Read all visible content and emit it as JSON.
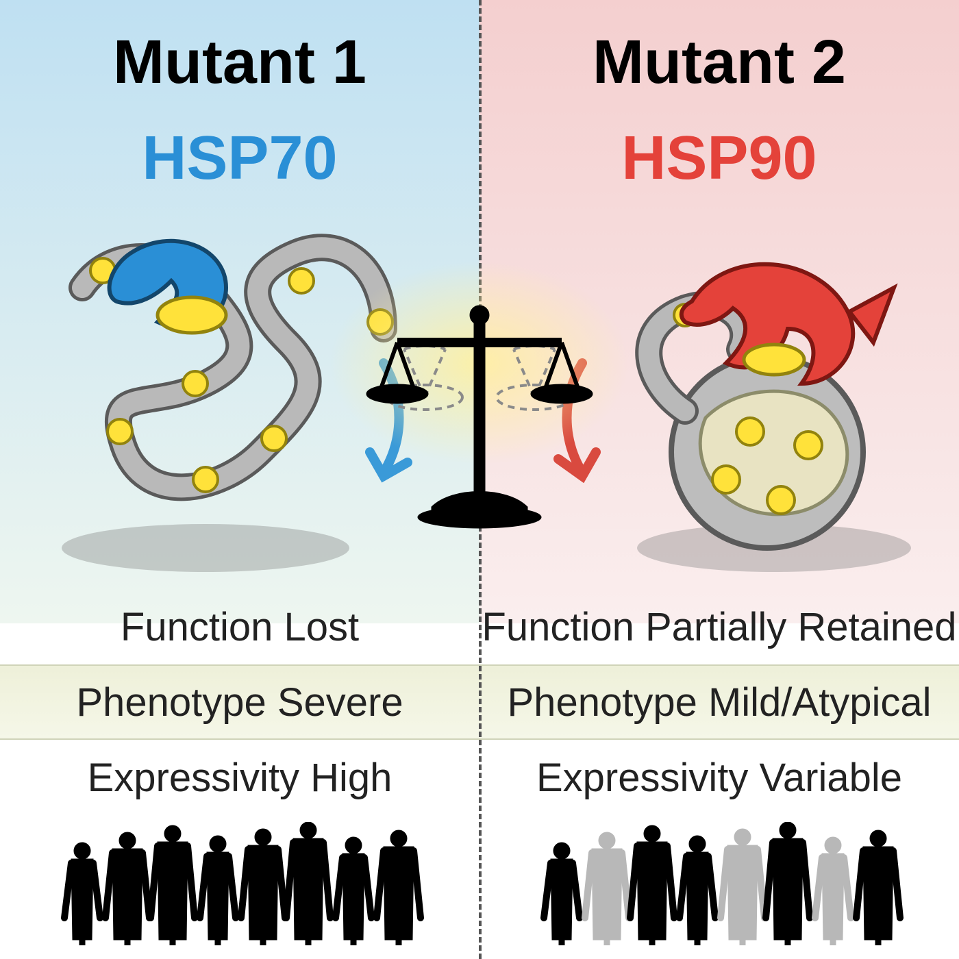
{
  "left": {
    "title": "Mutant 1",
    "hsp_label": "HSP70",
    "hsp_color": "#2a8fd6",
    "bg_gradient_top": "#bfe0f2",
    "bg_gradient_bottom": "#eef6f0",
    "protein_color": "#2a8fd6",
    "arrow_color": "#3a9ad8",
    "function_text": "Function Lost",
    "phenotype_text": "Phenotype Severe",
    "expressivity_text": "Expressivity High",
    "people_colors": [
      "#000000",
      "#000000",
      "#000000",
      "#000000",
      "#000000",
      "#000000",
      "#000000",
      "#000000"
    ]
  },
  "right": {
    "title": "Mutant 2",
    "hsp_label": "HSP90",
    "hsp_color": "#e4423a",
    "bg_gradient_top": "#f4cfcf",
    "bg_gradient_bottom": "#faeeee",
    "protein_color": "#e4423a",
    "arrow_color": "#d94a3f",
    "function_text": "Function Partially Retained",
    "phenotype_text": "Phenotype Mild/Atypical",
    "expressivity_text": "Expressivity Variable",
    "people_colors": [
      "#000000",
      "#b8b8b8",
      "#000000",
      "#000000",
      "#b8b8b8",
      "#000000",
      "#b8b8b8",
      "#000000"
    ]
  },
  "common": {
    "chain_color": "#b9b9b9",
    "chain_stroke": "#5a5a5a",
    "bead_fill": "#ffe23a",
    "bead_stroke": "#92830d",
    "scale_color": "#000000",
    "scale_ghost": "#8a8a8a",
    "shadow_color": "rgba(120,120,120,0.35)",
    "title_color": "#000000",
    "row_font_color": "#222222",
    "pheno_row_bg_top": "#eef0d9",
    "pheno_row_bg_bottom": "#f5f7e8"
  }
}
